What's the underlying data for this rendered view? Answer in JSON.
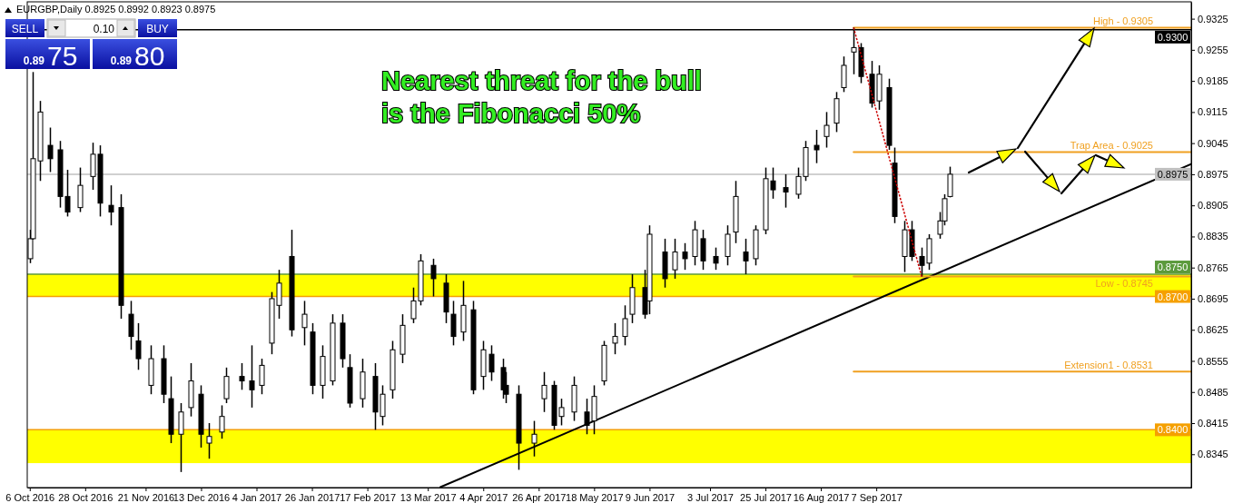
{
  "chart_data": {
    "type": "candlestick",
    "title": "EURGBP,Daily  0.8925 0.8992 0.8923 0.8975",
    "x": [
      "2016-10-06",
      "2016-10-07",
      "2016-10-10",
      "2016-10-14",
      "2016-10-18",
      "2016-10-21",
      "2016-10-26",
      "2016-10-31",
      "2016-11-03",
      "2016-11-07",
      "2016-11-11",
      "2016-11-15",
      "2016-11-18",
      "2016-11-23",
      "2016-11-28",
      "2016-12-01",
      "2016-12-05",
      "2016-12-09",
      "2016-12-13",
      "2016-12-16",
      "2016-12-21",
      "2016-12-23",
      "2016-12-29",
      "2017-01-02",
      "2017-01-06",
      "2017-01-10",
      "2017-01-13",
      "2017-01-18",
      "2017-01-23",
      "2017-01-26",
      "2017-01-30",
      "2017-02-03",
      "2017-02-07",
      "2017-02-10",
      "2017-02-15",
      "2017-02-20",
      "2017-02-23",
      "2017-02-27",
      "2017-03-03",
      "2017-03-07",
      "2017-03-10",
      "2017-03-15",
      "2017-03-20",
      "2017-03-23",
      "2017-03-27",
      "2017-03-31",
      "2017-04-04",
      "2017-04-07",
      "2017-04-12",
      "2017-04-13",
      "2017-04-18",
      "2017-04-24",
      "2017-04-28",
      "2017-05-02",
      "2017-05-05",
      "2017-05-10",
      "2017-05-15",
      "2017-05-18",
      "2017-05-22",
      "2017-05-26",
      "2017-05-30",
      "2017-06-02",
      "2017-06-07",
      "2017-06-09",
      "2017-06-15",
      "2017-06-19",
      "2017-06-23",
      "2017-06-27",
      "2017-06-30",
      "2017-07-05",
      "2017-07-10",
      "2017-07-13",
      "2017-07-17",
      "2017-07-21",
      "2017-07-25",
      "2017-07-28",
      "2017-08-02",
      "2017-08-07",
      "2017-08-10",
      "2017-08-14",
      "2017-08-18",
      "2017-08-22",
      "2017-08-25",
      "2017-08-29",
      "2017-09-01",
      "2017-09-05",
      "2017-09-08",
      "2017-09-12",
      "2017-09-14",
      "2017-09-18",
      "2017-09-21",
      "2017-09-25",
      "2017-09-28",
      "2017-10-02",
      "2017-10-04",
      "2017-10-06"
    ],
    "ohlc": [
      [
        0.8785,
        0.885,
        0.8775,
        0.883
      ],
      [
        0.883,
        0.9205,
        0.8828,
        0.901
      ],
      [
        0.9005,
        0.914,
        0.896,
        0.9115
      ],
      [
        0.904,
        0.908,
        0.898,
        0.901
      ],
      [
        0.903,
        0.905,
        0.89,
        0.8925
      ],
      [
        0.8925,
        0.8985,
        0.888,
        0.889
      ],
      [
        0.89,
        0.899,
        0.889,
        0.895
      ],
      [
        0.897,
        0.9046,
        0.894,
        0.902
      ],
      [
        0.902,
        0.904,
        0.888,
        0.891
      ],
      [
        0.8905,
        0.895,
        0.886,
        0.889
      ],
      [
        0.89,
        0.893,
        0.865,
        0.868
      ],
      [
        0.866,
        0.869,
        0.858,
        0.861
      ],
      [
        0.86,
        0.864,
        0.8535,
        0.856
      ],
      [
        0.85,
        0.859,
        0.848,
        0.856
      ],
      [
        0.856,
        0.859,
        0.846,
        0.848
      ],
      [
        0.847,
        0.852,
        0.837,
        0.839
      ],
      [
        0.839,
        0.846,
        0.8305,
        0.844
      ],
      [
        0.845,
        0.855,
        0.843,
        0.851
      ],
      [
        0.848,
        0.85,
        0.836,
        0.839
      ],
      [
        0.837,
        0.8415,
        0.8335,
        0.8385
      ],
      [
        0.8395,
        0.8455,
        0.838,
        0.843
      ],
      [
        0.847,
        0.854,
        0.846,
        0.852
      ],
      [
        0.852,
        0.855,
        0.849,
        0.851
      ],
      [
        0.851,
        0.859,
        0.845,
        0.849
      ],
      [
        0.85,
        0.856,
        0.848,
        0.8545
      ],
      [
        0.8595,
        0.871,
        0.857,
        0.8695
      ],
      [
        0.868,
        0.876,
        0.865,
        0.873
      ],
      [
        0.879,
        0.885,
        0.861,
        0.8625
      ],
      [
        0.863,
        0.869,
        0.859,
        0.866
      ],
      [
        0.862,
        0.864,
        0.848,
        0.85
      ],
      [
        0.85,
        0.859,
        0.847,
        0.8565
      ],
      [
        0.851,
        0.866,
        0.85,
        0.864
      ],
      [
        0.864,
        0.866,
        0.854,
        0.856
      ],
      [
        0.854,
        0.857,
        0.845,
        0.846
      ],
      [
        0.847,
        0.856,
        0.845,
        0.853
      ],
      [
        0.852,
        0.855,
        0.84,
        0.844
      ],
      [
        0.843,
        0.85,
        0.841,
        0.848
      ],
      [
        0.849,
        0.86,
        0.847,
        0.858
      ],
      [
        0.857,
        0.866,
        0.855,
        0.8635
      ],
      [
        0.865,
        0.872,
        0.864,
        0.869
      ],
      [
        0.869,
        0.8795,
        0.868,
        0.878
      ],
      [
        0.877,
        0.8785,
        0.87,
        0.874
      ],
      [
        0.873,
        0.875,
        0.864,
        0.8665
      ],
      [
        0.866,
        0.869,
        0.859,
        0.861
      ],
      [
        0.862,
        0.8735,
        0.86,
        0.868
      ],
      [
        0.867,
        0.869,
        0.848,
        0.849
      ],
      [
        0.852,
        0.86,
        0.849,
        0.858
      ],
      [
        0.857,
        0.859,
        0.851,
        0.853
      ],
      [
        0.854,
        0.856,
        0.847,
        0.849
      ],
      [
        0.85,
        0.853,
        0.846,
        0.848
      ],
      [
        0.848,
        0.85,
        0.831,
        0.837
      ],
      [
        0.837,
        0.842,
        0.834,
        0.839
      ],
      [
        0.847,
        0.853,
        0.844,
        0.85
      ],
      [
        0.85,
        0.851,
        0.84,
        0.841
      ],
      [
        0.843,
        0.847,
        0.841,
        0.845
      ],
      [
        0.844,
        0.852,
        0.842,
        0.85
      ],
      [
        0.844,
        0.847,
        0.839,
        0.841
      ],
      [
        0.842,
        0.85,
        0.839,
        0.8475
      ],
      [
        0.851,
        0.86,
        0.85,
        0.859
      ],
      [
        0.8595,
        0.864,
        0.857,
        0.861
      ],
      [
        0.861,
        0.868,
        0.859,
        0.865
      ],
      [
        0.866,
        0.875,
        0.864,
        0.872
      ],
      [
        0.872,
        0.876,
        0.865,
        0.866
      ],
      [
        0.869,
        0.886,
        0.866,
        0.884
      ],
      [
        0.88,
        0.883,
        0.872,
        0.874
      ],
      [
        0.876,
        0.883,
        0.874,
        0.88
      ],
      [
        0.88,
        0.882,
        0.876,
        0.8785
      ],
      [
        0.879,
        0.887,
        0.877,
        0.885
      ],
      [
        0.883,
        0.885,
        0.876,
        0.878
      ],
      [
        0.879,
        0.881,
        0.876,
        0.8775
      ],
      [
        0.879,
        0.886,
        0.877,
        0.884
      ],
      [
        0.8845,
        0.896,
        0.882,
        0.8925
      ],
      [
        0.88,
        0.883,
        0.875,
        0.878
      ],
      [
        0.8785,
        0.886,
        0.877,
        0.885
      ],
      [
        0.885,
        0.899,
        0.884,
        0.8965
      ],
      [
        0.896,
        0.899,
        0.892,
        0.894
      ],
      [
        0.8945,
        0.8975,
        0.89,
        0.8935
      ],
      [
        0.893,
        0.899,
        0.892,
        0.897
      ],
      [
        0.897,
        0.905,
        0.896,
        0.9035
      ],
      [
        0.904,
        0.9075,
        0.9,
        0.903
      ],
      [
        0.906,
        0.9115,
        0.9035,
        0.9085
      ],
      [
        0.909,
        0.916,
        0.907,
        0.9145
      ],
      [
        0.917,
        0.924,
        0.916,
        0.922
      ],
      [
        0.925,
        0.9305,
        0.92,
        0.926
      ],
      [
        0.926,
        0.927,
        0.918,
        0.9195
      ],
      [
        0.92,
        0.923,
        0.9125,
        0.9135
      ],
      [
        0.914,
        0.922,
        0.912,
        0.92
      ],
      [
        0.917,
        0.919,
        0.903,
        0.904
      ],
      [
        0.9,
        0.9035,
        0.8865,
        0.888
      ],
      [
        0.879,
        0.887,
        0.8755,
        0.885
      ],
      [
        0.885,
        0.887,
        0.878,
        0.879
      ],
      [
        0.879,
        0.881,
        0.8745,
        0.877
      ],
      [
        0.8775,
        0.884,
        0.876,
        0.883
      ],
      [
        0.884,
        0.889,
        0.883,
        0.887
      ],
      [
        0.887,
        0.893,
        0.886,
        0.892
      ],
      [
        0.8925,
        0.8992,
        0.8923,
        0.8975
      ]
    ],
    "series": [
      {
        "type": "line",
        "x": [
          "2017-03-18",
          "2018-01-10"
        ],
        "values": [
          0.8271,
          0.8998
        ],
        "color": "#000000"
      },
      {
        "type": "line",
        "x": [
          "2017-08-29",
          "2017-09-25"
        ],
        "values": [
          0.9305,
          0.8745
        ],
        "color": "#cc0000",
        "line_style": "dotted"
      },
      {
        "type": "line",
        "name": "High - 0.9305",
        "x": [
          "2017-08-29",
          "2018-01-10"
        ],
        "values": [
          0.9305,
          0.9305
        ],
        "color": "#f0a020"
      },
      {
        "type": "line",
        "name": "Trap Area - 0.9025",
        "x": [
          "2017-08-29",
          "2018-01-10"
        ],
        "values": [
          0.9025,
          0.9025
        ],
        "color": "#f0a020"
      },
      {
        "type": "line",
        "name": "Low - 0.8745",
        "x": [
          "2017-08-29",
          "2018-01-10"
        ],
        "values": [
          0.8745,
          0.8745
        ],
        "color": "#f0a020"
      },
      {
        "type": "line",
        "name": "Extension1 - 0.8531",
        "x": [
          "2017-08-29",
          "2018-01-10"
        ],
        "values": [
          0.8531,
          0.8531
        ],
        "color": "#f0a020"
      }
    ],
    "xlim": [
      "2016-10-05",
      "2018-01-10"
    ],
    "xticks": [
      {
        "value": "2016-10-06",
        "label": "6 Oct 2016"
      },
      {
        "value": "2016-10-28",
        "label": "28 Oct 2016"
      },
      {
        "value": "2016-11-21",
        "label": "21 Nov 2016"
      },
      {
        "value": "2016-12-13",
        "label": "13 Dec 2016"
      },
      {
        "value": "2017-01-04",
        "label": "4 Jan 2017"
      },
      {
        "value": "2017-01-26",
        "label": "26 Jan 2017"
      },
      {
        "value": "2017-02-17",
        "label": "17 Feb 2017"
      },
      {
        "value": "2017-03-13",
        "label": "13 Mar 2017"
      },
      {
        "value": "2017-04-04",
        "label": "4 Apr 2017"
      },
      {
        "value": "2017-04-26",
        "label": "26 Apr 2017"
      },
      {
        "value": "2017-05-18",
        "label": "18 May 2017"
      },
      {
        "value": "2017-06-09",
        "label": "9 Jun 2017"
      },
      {
        "value": "2017-07-03",
        "label": "3 Jul 2017"
      },
      {
        "value": "2017-07-25",
        "label": "25 Jul 2017"
      },
      {
        "value": "2017-08-16",
        "label": "16 Aug 2017"
      },
      {
        "value": "2017-09-07",
        "label": "7 Sep 2017"
      }
    ],
    "ylim": [
      0.827,
      0.9363
    ],
    "yticks": [
      0.9325,
      0.9255,
      0.9185,
      0.9115,
      0.9045,
      0.8975,
      0.8905,
      0.8835,
      0.8765,
      0.8695,
      0.8625,
      0.8555,
      0.8485,
      0.8415,
      0.8345
    ],
    "ref_lines": [
      {
        "axis": "y",
        "value": 0.93,
        "label": "0.9300",
        "color": "#000000"
      },
      {
        "axis": "y",
        "value": 0.8975,
        "label": "0.8975",
        "color": "#c0c0c0"
      },
      {
        "axis": "y",
        "value": 0.875,
        "label": "0.8750",
        "color": "#5b9a3c"
      },
      {
        "axis": "y",
        "value": 0.87,
        "label": "0.8700",
        "color": "#f5a000"
      },
      {
        "axis": "y",
        "value": 0.84,
        "label": "0.8400",
        "color": "#f5a000"
      }
    ],
    "bands": [
      {
        "axis": "y",
        "from": 0.87,
        "to": 0.875,
        "color": "#ffff00"
      },
      {
        "axis": "y",
        "from": 0.8325,
        "to": 0.84,
        "color": "#ffff00"
      }
    ],
    "annotations": [
      "Nearest threat for the bull\nis the Fibonacci 50%",
      "SELL",
      "0.10",
      "BUY",
      "0.89",
      "75",
      "0.89",
      "80"
    ]
  }
}
